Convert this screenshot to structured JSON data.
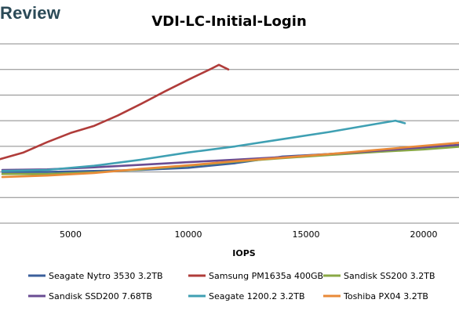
{
  "watermark": "Review",
  "chart_data": {
    "type": "line",
    "title": "VDI-LC-Initial-Login",
    "xlabel": "IOPS",
    "ylabel": "",
    "xlim": [
      2000,
      21500
    ],
    "ylim": [
      0,
      350
    ],
    "x_ticks": [
      5000,
      10000,
      15000,
      20000
    ],
    "x_tick_labels": [
      "5000",
      "10000",
      "15000",
      "20000"
    ],
    "y_grid": [
      50,
      100,
      150,
      200,
      250,
      300,
      350
    ],
    "grid": "horizontal",
    "legend_position": "bottom",
    "series": [
      {
        "name": "Seagate Nytro 3530 3.2TB",
        "color": "#3b5f9b",
        "x": [
          2100,
          4000,
          6000,
          8000,
          10000,
          12000,
          14000,
          16000,
          18000,
          20000,
          21500
        ],
        "y": [
          100,
          100,
          102,
          104,
          108,
          117,
          130,
          135,
          140,
          148,
          152
        ]
      },
      {
        "name": "Samsung PM1635a 400GB",
        "color": "#b03c3a",
        "x": [
          2000,
          3000,
          4000,
          5000,
          6000,
          7000,
          8000,
          9000,
          10000,
          11000,
          11300,
          11700
        ],
        "y": [
          125,
          138,
          158,
          176,
          190,
          210,
          233,
          257,
          280,
          302,
          309,
          300
        ]
      },
      {
        "name": "Sandisk SS200 3.2TB",
        "color": "#89a845",
        "x": [
          2100,
          4000,
          6000,
          8000,
          10000,
          12000,
          14000,
          16000,
          18000,
          20000,
          21500
        ],
        "y": [
          96,
          96,
          99,
          105,
          112,
          120,
          127,
          133,
          139,
          144,
          149
        ]
      },
      {
        "name": "Sandisk SSD200 7.68TB",
        "color": "#6a4c93",
        "x": [
          2100,
          4000,
          6000,
          8000,
          10000,
          12000,
          14000,
          16000,
          18000,
          20000,
          21500
        ],
        "y": [
          104,
          105,
          109,
          114,
          119,
          124,
          129,
          135,
          141,
          148,
          153
        ]
      },
      {
        "name": "Seagate 1200.2 3.2TB",
        "color": "#3fa0b3",
        "x": [
          2100,
          4000,
          6000,
          8000,
          10000,
          12000,
          14000,
          16000,
          18000,
          18800,
          19200
        ],
        "y": [
          102,
          104,
          112,
          124,
          138,
          150,
          164,
          178,
          194,
          200,
          195
        ]
      },
      {
        "name": "Toshiba PX04 3.2TB",
        "color": "#e98a38",
        "x": [
          2100,
          4000,
          6000,
          8000,
          10000,
          12000,
          14000,
          16000,
          18000,
          20000,
          21500
        ],
        "y": [
          90,
          93,
          98,
          106,
          113,
          121,
          128,
          135,
          143,
          151,
          157
        ]
      }
    ]
  }
}
